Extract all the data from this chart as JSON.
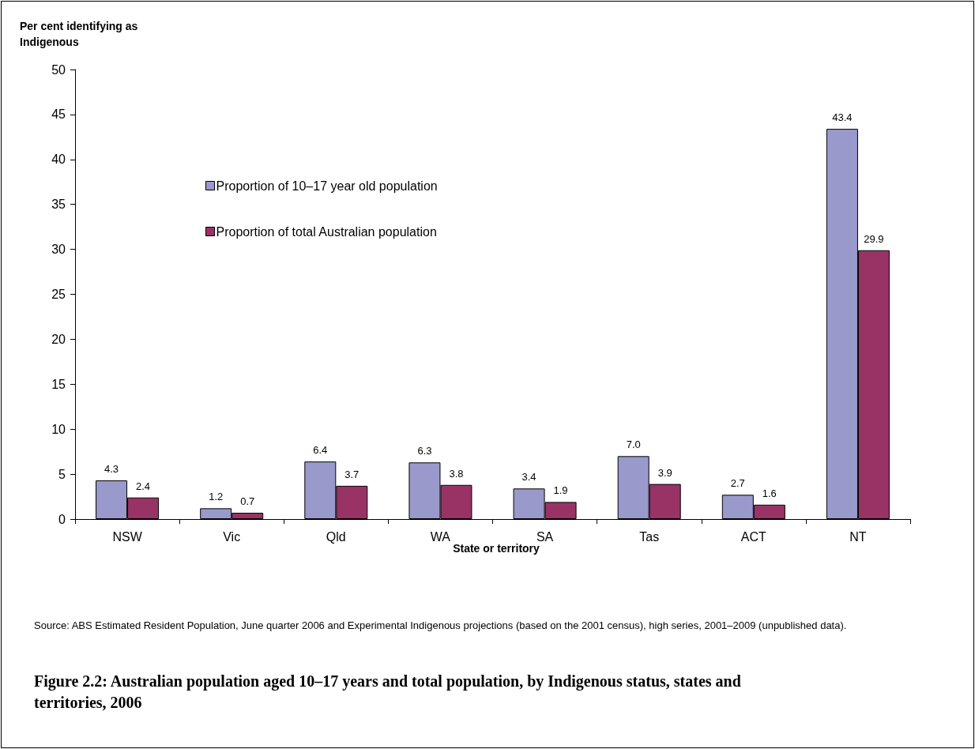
{
  "chart_data": {
    "type": "bar",
    "title": "Figure 2.2: Australian population aged 10–17 years and total population, by Indigenous status, states and territories, 2006",
    "xlabel": "State or territory",
    "ylabel": "Per cent identifying as\nIndigenous",
    "categories": [
      "NSW",
      "Vic",
      "Qld",
      "WA",
      "SA",
      "Tas",
      "ACT",
      "NT"
    ],
    "series": [
      {
        "name": "Proportion of 10–17 year old population",
        "color": "#9999cc",
        "values": [
          4.3,
          1.2,
          6.4,
          6.3,
          3.4,
          7.0,
          2.7,
          43.4
        ],
        "value_labels": [
          "4.3",
          "1.2",
          "6.4",
          "6.3",
          "3.4",
          "7.0",
          "2.7",
          "43.4"
        ]
      },
      {
        "name": "Proportion of total Australian population",
        "color": "#993366",
        "values": [
          2.4,
          0.7,
          3.7,
          3.8,
          1.9,
          3.9,
          1.6,
          29.9
        ],
        "value_labels": [
          "2.4",
          "0.7",
          "3.7",
          "3.8",
          "1.9",
          "3.9",
          "1.6",
          "29.9"
        ]
      }
    ],
    "ylim": [
      0,
      50
    ],
    "yticks": [
      0,
      5,
      10,
      15,
      20,
      25,
      30,
      35,
      40,
      45,
      50
    ],
    "grid": false,
    "legend": "top left",
    "annotations": [
      "Source: ABS Estimated Resident Population, June quarter 2006 and Experimental Indigenous projections (based on the 2001 census), high series, 2001–2009 (unpublished data)."
    ]
  }
}
